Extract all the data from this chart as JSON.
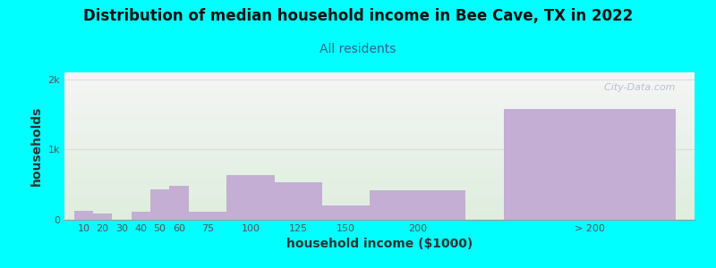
{
  "title": "Distribution of median household income in Bee Cave, TX in 2022",
  "subtitle": "All residents",
  "xlabel": "household income ($1000)",
  "ylabel": "households",
  "background_color": "#00FFFF",
  "gradient_top": "#f5f5f5",
  "gradient_bottom": "#deeede",
  "bar_color": "#c4aed4",
  "categories": [
    "10",
    "20",
    "30",
    "40",
    "50",
    "60",
    "75",
    "100",
    "125",
    "150",
    "200",
    "> 200"
  ],
  "values": [
    130,
    90,
    0,
    110,
    430,
    490,
    110,
    640,
    530,
    205,
    420,
    1580
  ],
  "bar_lefts": [
    5,
    15,
    25,
    35,
    45,
    55,
    65,
    85,
    110,
    135,
    160,
    230
  ],
  "bar_widths": [
    10,
    10,
    10,
    10,
    10,
    10,
    20,
    25,
    25,
    25,
    50,
    90
  ],
  "yticks": [
    0,
    1000,
    2000
  ],
  "ytick_labels": [
    "0",
    "1k",
    "2k"
  ],
  "ylim": [
    0,
    2100
  ],
  "xlim": [
    0,
    330
  ],
  "title_fontsize": 12,
  "subtitle_fontsize": 10,
  "axis_label_fontsize": 10,
  "tick_fontsize": 8,
  "watermark": "  City-Data.com",
  "watermark_color": "#b0b8c8",
  "subtitle_color": "#336688",
  "title_color": "#111111",
  "grid_color": "#dddddd",
  "tick_color": "#555555",
  "axis_label_color": "#333333"
}
